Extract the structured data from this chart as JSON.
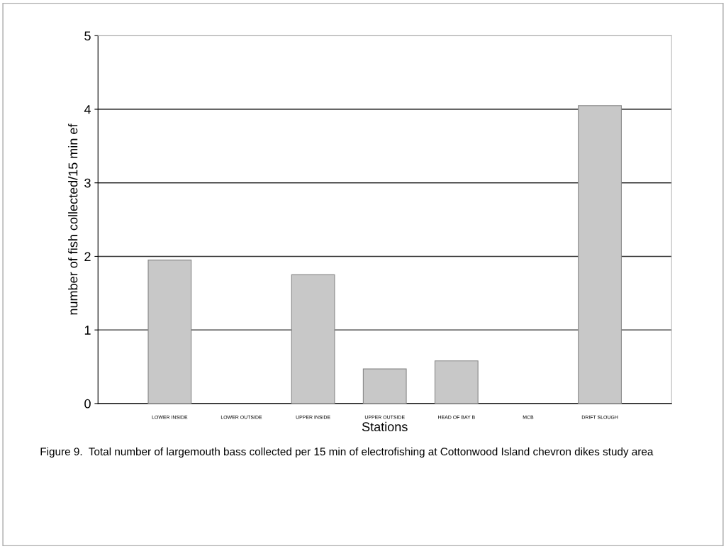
{
  "chart_data": {
    "type": "bar",
    "xlabel": "Stations",
    "ylabel": "number of fish collected/15 min ef",
    "categories": [
      "LOWER INSIDE",
      "LOWER OUTSIDE",
      "UPPER INSIDE",
      "UPPER OUTSIDE",
      "HEAD OF BAY B",
      "MCB",
      "DRIFT SLOUGH"
    ],
    "values": [
      1.95,
      0,
      1.75,
      0.47,
      0.58,
      0,
      4.05
    ],
    "color": "#c8c8c8",
    "ylim": [
      0,
      5
    ],
    "yticks": [
      0,
      1,
      2,
      3,
      4,
      5
    ],
    "grid": "y",
    "annotations": [
      "Figure 9.  Total number of largemouth bass collected per 15 min of electrofishing at Cottonwood Island chevron dikes study area"
    ]
  }
}
